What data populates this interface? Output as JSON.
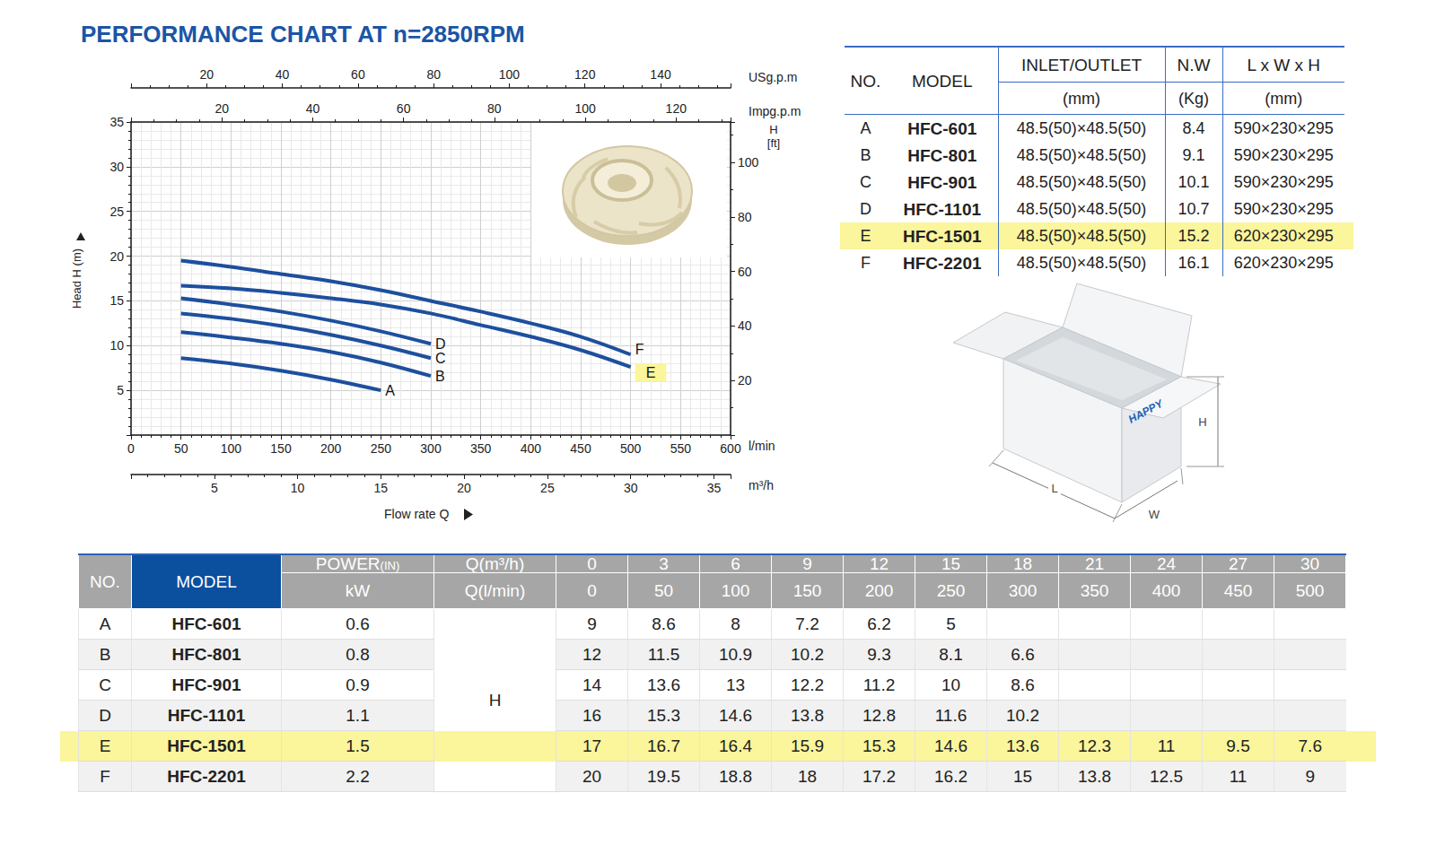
{
  "chart_data": {
    "type": "line",
    "title": "PERFORMANCE CHART AT n=2850RPM",
    "xlabel": "l/min",
    "xlim": [
      0,
      600
    ],
    "xticks": [
      0,
      50,
      100,
      150,
      200,
      250,
      300,
      350,
      400,
      450,
      500,
      550,
      600
    ],
    "xtitle": "Flow rate Q",
    "x2label": "m³/h",
    "x2lim": [
      0,
      36
    ],
    "x2ticks": [
      5,
      10,
      15,
      20,
      25,
      30,
      35
    ],
    "x3label": "USg.p.m",
    "x3lim": [
      0,
      158.5
    ],
    "x3ticks": [
      20,
      40,
      60,
      80,
      100,
      120,
      140
    ],
    "x4label": "Impg.p.m",
    "x4lim": [
      0,
      132
    ],
    "x4ticks": [
      20,
      40,
      60,
      80,
      100,
      120
    ],
    "ylabel": "Head H (m)",
    "ylim": [
      0,
      35
    ],
    "yticks": [
      5,
      10,
      15,
      20,
      25,
      30,
      35
    ],
    "y2label": "H [ft]",
    "y2lim": [
      0,
      114.8
    ],
    "y2ticks": [
      20,
      40,
      60,
      80,
      100
    ],
    "grid": true,
    "x": [
      50,
      100,
      150,
      200,
      250,
      300,
      350,
      400,
      450,
      500
    ],
    "series": [
      {
        "name": "A",
        "color": "#1d4f9e",
        "values": [
          8.6,
          8,
          7.2,
          6.2,
          5,
          null,
          null,
          null,
          null,
          null
        ]
      },
      {
        "name": "B",
        "color": "#1d4f9e",
        "values": [
          11.5,
          10.9,
          10.2,
          9.3,
          8.1,
          6.6,
          null,
          null,
          null,
          null
        ]
      },
      {
        "name": "C",
        "color": "#1d4f9e",
        "values": [
          13.6,
          13,
          12.2,
          11.2,
          10,
          8.6,
          null,
          null,
          null,
          null
        ]
      },
      {
        "name": "D",
        "color": "#1d4f9e",
        "values": [
          15.3,
          14.6,
          13.8,
          12.8,
          11.6,
          10.2,
          null,
          null,
          null,
          null
        ]
      },
      {
        "name": "E",
        "color": "#1d4f9e",
        "values": [
          16.7,
          16.4,
          15.9,
          15.3,
          14.6,
          13.6,
          12.3,
          11,
          9.5,
          7.6
        ]
      },
      {
        "name": "F",
        "color": "#1d4f9e",
        "values": [
          19.5,
          18.8,
          18,
          17.2,
          16.2,
          15,
          13.8,
          12.5,
          11,
          9
        ]
      }
    ]
  },
  "model_table": {
    "headers": [
      {
        "text": "NO."
      },
      {
        "text": "MODEL"
      },
      {
        "text": "INLET/OUTLET",
        "unit": "(mm)"
      },
      {
        "text": "N.W",
        "unit": "(Kg)"
      },
      {
        "text": "L x W x H",
        "unit": "(mm)"
      }
    ],
    "rows": [
      {
        "no": "A",
        "model": "HFC-601",
        "inlet_outlet": "48.5(50)×48.5(50)",
        "nw": 8.4,
        "size": "590×230×295"
      },
      {
        "no": "B",
        "model": "HFC-801",
        "inlet_outlet": "48.5(50)×48.5(50)",
        "nw": 9.1,
        "size": "590×230×295"
      },
      {
        "no": "C",
        "model": "HFC-901",
        "inlet_outlet": "48.5(50)×48.5(50)",
        "nw": 10.1,
        "size": "590×230×295"
      },
      {
        "no": "D",
        "model": "HFC-1101",
        "inlet_outlet": "48.5(50)×48.5(50)",
        "nw": 10.7,
        "size": "590×230×295"
      },
      {
        "no": "E",
        "model": "HFC-1501",
        "inlet_outlet": "48.5(50)×48.5(50)",
        "nw": 15.2,
        "size": "620×230×295"
      },
      {
        "no": "F",
        "model": "HFC-2201",
        "inlet_outlet": "48.5(50)×48.5(50)",
        "nw": 16.1,
        "size": "620×230×295"
      }
    ]
  },
  "performance_table": {
    "no_header": "NO.",
    "model_header": "MODEL",
    "power_header": "POWER(IN)",
    "power_unit": "kW",
    "q_m3h_header": "Q(m³/h)",
    "q_lmin_header": "Q(l/min)",
    "head_label": "H",
    "q_m3h": [
      0,
      3,
      6,
      9,
      12,
      15,
      18,
      21,
      24,
      27,
      30
    ],
    "q_lmin": [
      0,
      50,
      100,
      150,
      200,
      250,
      300,
      350,
      400,
      450,
      500
    ],
    "rows": [
      {
        "no": "A",
        "model": "HFC-601",
        "power": 0.6,
        "head": [
          9,
          8.6,
          8,
          7.2,
          6.2,
          5,
          null,
          null,
          null,
          null,
          null
        ]
      },
      {
        "no": "B",
        "model": "HFC-801",
        "power": 0.8,
        "head": [
          12,
          11.5,
          10.9,
          10.2,
          9.3,
          8.1,
          6.6,
          null,
          null,
          null,
          null
        ]
      },
      {
        "no": "C",
        "model": "HFC-901",
        "power": 0.9,
        "head": [
          14,
          13.6,
          13,
          12.2,
          11.2,
          10,
          8.6,
          null,
          null,
          null,
          null
        ]
      },
      {
        "no": "D",
        "model": "HFC-1101",
        "power": 1.1,
        "head": [
          16,
          15.3,
          14.6,
          13.8,
          12.8,
          11.6,
          10.2,
          null,
          null,
          null,
          null
        ]
      },
      {
        "no": "E",
        "model": "HFC-1501",
        "power": 1.5,
        "head": [
          17,
          16.7,
          16.4,
          15.9,
          15.3,
          14.6,
          13.6,
          12.3,
          11,
          9.5,
          7.6
        ]
      },
      {
        "no": "F",
        "model": "HFC-2201",
        "power": 2.2,
        "head": [
          20,
          19.5,
          18.8,
          18,
          17.2,
          16.2,
          15,
          13.8,
          12.5,
          11,
          9
        ]
      }
    ]
  },
  "box": {
    "logo": "HAPPY",
    "length": "L",
    "width": "W",
    "height": "H"
  }
}
